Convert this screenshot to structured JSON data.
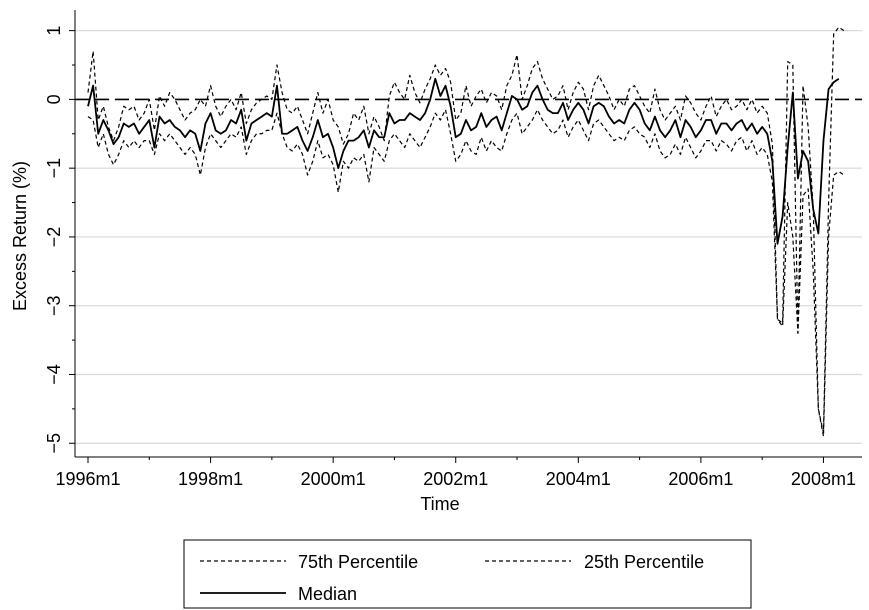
{
  "chart_data": {
    "type": "line",
    "title": "",
    "xlabel": "Time",
    "ylabel": "Excess Return (%)",
    "x_ticks": [
      "1996m1",
      "1998m1",
      "2000m1",
      "2002m1",
      "2004m1",
      "2006m1",
      "2008m1"
    ],
    "y_ticks": [
      "1",
      "0",
      "−1",
      "−2",
      "−3",
      "−4",
      "−5"
    ],
    "xlim": [
      0,
      149
    ],
    "ylim": [
      -5.2,
      1.3
    ],
    "x_unit": "months since 1996m1",
    "grid": "horizontal",
    "reference_line": 0,
    "legend": {
      "position": "bottom",
      "entries": [
        "75th Percentile",
        "25th Percentile",
        "Median"
      ]
    },
    "series": [
      {
        "name": "75th Percentile",
        "style": "dashed",
        "values": [
          0.1,
          0.7,
          -0.3,
          -0.1,
          -0.4,
          -0.6,
          -0.4,
          -0.1,
          -0.15,
          -0.1,
          -0.3,
          -0.2,
          0.0,
          -0.45,
          0.05,
          -0.1,
          0.1,
          0.0,
          -0.15,
          -0.3,
          -0.2,
          -0.15,
          0.0,
          -0.1,
          0.2,
          -0.1,
          -0.25,
          -0.1,
          0.0,
          -0.15,
          0.1,
          -0.35,
          -0.15,
          -0.05,
          0.0,
          0.05,
          0.0,
          0.5,
          0.1,
          -0.15,
          -0.2,
          -0.1,
          -0.3,
          -0.5,
          -0.2,
          0.1,
          -0.2,
          0.0,
          -0.3,
          -0.4,
          -0.65,
          -0.5,
          -0.2,
          -0.3,
          -0.1,
          -0.5,
          -0.25,
          -0.4,
          -0.6,
          0.05,
          0.25,
          0.1,
          0.0,
          0.35,
          0.1,
          -0.05,
          0.15,
          0.3,
          0.5,
          0.35,
          0.45,
          0.25,
          -0.3,
          -0.2,
          0.2,
          -0.1,
          0.05,
          0.15,
          -0.05,
          0.1,
          0.05,
          -0.15,
          0.2,
          0.35,
          0.65,
          0.0,
          0.2,
          0.45,
          0.55,
          0.3,
          0.15,
          0.0,
          0.05,
          0.2,
          -0.15,
          0.1,
          0.25,
          0.15,
          -0.15,
          0.2,
          0.35,
          0.2,
          0.05,
          -0.15,
          0.0,
          -0.1,
          0.15,
          0.2,
          0.05,
          -0.1,
          -0.2,
          0.15,
          -0.15,
          -0.3,
          -0.2,
          -0.1,
          -0.3,
          0.05,
          -0.05,
          -0.2,
          -0.3,
          -0.1,
          0.05,
          -0.25,
          -0.1,
          0.0,
          -0.15,
          -0.1,
          0.0,
          -0.15,
          0.0,
          -0.2,
          -0.1,
          -0.2,
          -0.65,
          -3.2,
          -3.25,
          0.55,
          0.5,
          -3.4,
          0.2,
          -0.4,
          -1.6,
          -4.5,
          -4.85,
          -1.5,
          0.95,
          1.05,
          1.0
        ]
      },
      {
        "name": "25th Percentile",
        "style": "dashed",
        "values": [
          -0.25,
          -0.3,
          -0.7,
          -0.5,
          -0.8,
          -0.95,
          -0.8,
          -0.6,
          -0.7,
          -0.6,
          -0.7,
          -0.6,
          -0.6,
          -0.8,
          -0.5,
          -0.6,
          -0.5,
          -0.6,
          -0.7,
          -0.8,
          -0.7,
          -0.8,
          -1.1,
          -0.7,
          -0.5,
          -0.6,
          -0.7,
          -0.6,
          -0.5,
          -0.55,
          -0.4,
          -0.8,
          -0.6,
          -0.5,
          -0.5,
          -0.45,
          -0.45,
          -0.2,
          -0.5,
          -0.7,
          -0.75,
          -0.65,
          -0.8,
          -1.1,
          -0.9,
          -0.6,
          -0.85,
          -0.8,
          -0.95,
          -1.35,
          -0.9,
          -1.0,
          -0.85,
          -0.9,
          -0.8,
          -1.2,
          -0.7,
          -0.8,
          -0.9,
          -0.6,
          -0.5,
          -0.6,
          -0.7,
          -0.5,
          -0.6,
          -0.7,
          -0.55,
          -0.4,
          -0.2,
          -0.3,
          -0.15,
          -0.5,
          -0.9,
          -0.8,
          -0.6,
          -0.75,
          -0.8,
          -0.55,
          -0.75,
          -0.6,
          -0.7,
          -0.75,
          -0.5,
          -0.3,
          -0.2,
          -0.5,
          -0.4,
          -0.3,
          -0.15,
          -0.3,
          -0.4,
          -0.5,
          -0.45,
          -0.3,
          -0.55,
          -0.4,
          -0.3,
          -0.45,
          -0.6,
          -0.35,
          -0.3,
          -0.4,
          -0.5,
          -0.6,
          -0.55,
          -0.6,
          -0.45,
          -0.4,
          -0.5,
          -0.55,
          -0.7,
          -0.5,
          -0.75,
          -0.85,
          -0.8,
          -0.65,
          -0.8,
          -0.55,
          -0.7,
          -0.85,
          -0.75,
          -0.6,
          -0.6,
          -0.75,
          -0.6,
          -0.65,
          -0.75,
          -0.6,
          -0.55,
          -0.75,
          -0.6,
          -0.8,
          -0.7,
          -0.8,
          -1.2,
          -3.2,
          -3.3,
          -1.5,
          -2.0,
          -3.4,
          -1.4,
          -1.3,
          -2.5,
          -4.5,
          -4.9,
          -2.0,
          -1.1,
          -1.05,
          -1.1
        ]
      },
      {
        "name": "Median",
        "style": "solid",
        "values": [
          -0.1,
          0.2,
          -0.5,
          -0.3,
          -0.45,
          -0.65,
          -0.55,
          -0.35,
          -0.4,
          -0.35,
          -0.5,
          -0.4,
          -0.3,
          -0.7,
          -0.25,
          -0.35,
          -0.3,
          -0.4,
          -0.45,
          -0.55,
          -0.45,
          -0.5,
          -0.75,
          -0.35,
          -0.2,
          -0.45,
          -0.5,
          -0.45,
          -0.3,
          -0.35,
          -0.15,
          -0.6,
          -0.35,
          -0.3,
          -0.25,
          -0.2,
          -0.25,
          0.2,
          -0.5,
          -0.5,
          -0.45,
          -0.4,
          -0.6,
          -0.75,
          -0.55,
          -0.3,
          -0.55,
          -0.5,
          -0.7,
          -1.0,
          -0.75,
          -0.6,
          -0.6,
          -0.55,
          -0.45,
          -0.7,
          -0.45,
          -0.55,
          -0.55,
          -0.2,
          -0.35,
          -0.3,
          -0.3,
          -0.2,
          -0.25,
          -0.3,
          -0.2,
          0.0,
          0.3,
          0.05,
          0.2,
          -0.1,
          -0.55,
          -0.5,
          -0.3,
          -0.45,
          -0.4,
          -0.2,
          -0.4,
          -0.3,
          -0.25,
          -0.45,
          -0.2,
          0.05,
          0.0,
          -0.15,
          -0.1,
          0.1,
          0.2,
          0.0,
          -0.15,
          -0.2,
          -0.2,
          -0.05,
          -0.3,
          -0.15,
          -0.05,
          -0.15,
          -0.35,
          -0.1,
          -0.05,
          -0.1,
          -0.25,
          -0.35,
          -0.3,
          -0.35,
          -0.15,
          -0.05,
          -0.15,
          -0.35,
          -0.45,
          -0.25,
          -0.45,
          -0.55,
          -0.45,
          -0.3,
          -0.55,
          -0.3,
          -0.4,
          -0.55,
          -0.45,
          -0.3,
          -0.3,
          -0.5,
          -0.35,
          -0.35,
          -0.45,
          -0.35,
          -0.3,
          -0.45,
          -0.35,
          -0.5,
          -0.4,
          -0.5,
          -0.9,
          -2.1,
          -1.7,
          -0.7,
          0.1,
          -1.15,
          -0.75,
          -0.9,
          -1.6,
          -1.95,
          -0.6,
          0.15,
          0.25,
          0.3
        ]
      }
    ]
  }
}
